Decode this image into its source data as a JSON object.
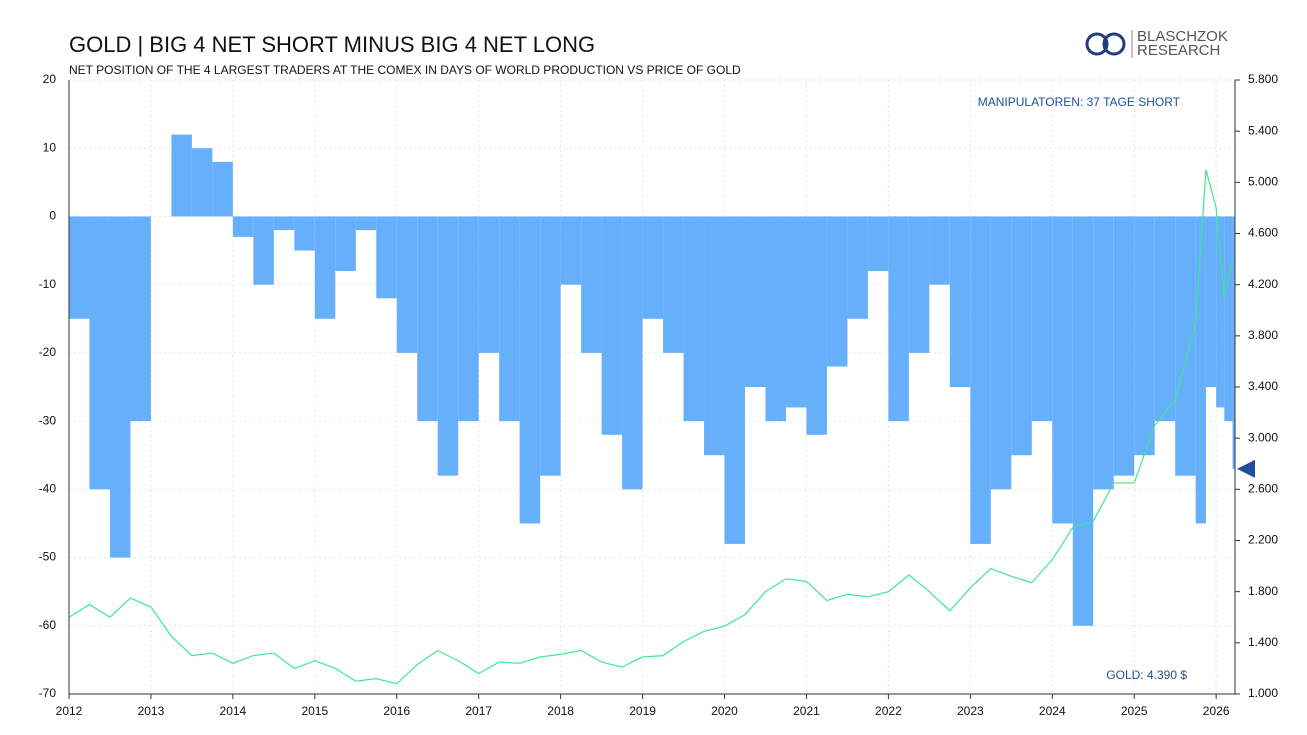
{
  "chart_data": {
    "type": "bar-line",
    "title": "GOLD | BIG 4 NET SHORT MINUS BIG 4 NET LONG",
    "subtitle": "NET POSITION OF THE 4 LARGEST TRADERS AT THE COMEX IN DAYS OF WORLD PRODUCTION VS PRICE OF GOLD",
    "logo": [
      "BLASCHZOK",
      "RESEARCH"
    ],
    "annotations": [
      "MANIPULATOREN: 37 TAGE SHORT",
      "GOLD: 4.390 $"
    ],
    "x": [
      2012,
      2012.25,
      2012.5,
      2012.75,
      2013,
      2013.25,
      2013.5,
      2013.75,
      2014,
      2014.25,
      2014.5,
      2014.75,
      2015,
      2015.25,
      2015.5,
      2015.75,
      2016,
      2016.25,
      2016.5,
      2016.75,
      2017,
      2017.25,
      2017.5,
      2017.75,
      2018,
      2018.25,
      2018.5,
      2018.75,
      2019,
      2019.25,
      2019.5,
      2019.75,
      2020,
      2020.25,
      2020.5,
      2020.75,
      2021,
      2021.25,
      2021.5,
      2021.75,
      2022,
      2022.25,
      2022.5,
      2022.75,
      2023,
      2023.25,
      2023.5,
      2023.75,
      2024,
      2024.25,
      2024.5,
      2024.75,
      2025,
      2025.25,
      2025.5,
      2025.75,
      2025.875,
      2026,
      2026.1,
      2026.2
    ],
    "series": [
      {
        "name": "Big 4 net position",
        "color": "#66b0fb",
        "values": [
          -15,
          -40,
          -50,
          -30,
          0,
          12,
          10,
          8,
          -3,
          -10,
          -2,
          -5,
          -15,
          -8,
          -2,
          -12,
          -20,
          -30,
          -38,
          -30,
          -20,
          -30,
          -45,
          -38,
          -10,
          -20,
          -32,
          -40,
          -15,
          -20,
          -30,
          -35,
          -48,
          -25,
          -30,
          -28,
          -32,
          -22,
          -15,
          -8,
          -30,
          -20,
          -10,
          -25,
          -48,
          -40,
          -35,
          -30,
          -45,
          -60,
          -40,
          -38,
          -35,
          -30,
          -38,
          -45,
          -25,
          -28,
          -30,
          -37
        ]
      },
      {
        "name": "Gold",
        "axis": "y2",
        "color": "#3ee88e",
        "values": [
          1600,
          1700,
          1600,
          1750,
          1680,
          1450,
          1300,
          1320,
          1240,
          1300,
          1320,
          1200,
          1260,
          1200,
          1100,
          1120,
          1080,
          1230,
          1340,
          1260,
          1160,
          1250,
          1240,
          1290,
          1310,
          1340,
          1250,
          1210,
          1290,
          1300,
          1410,
          1490,
          1530,
          1620,
          1800,
          1900,
          1880,
          1730,
          1780,
          1760,
          1800,
          1930,
          1800,
          1650,
          1830,
          1980,
          1920,
          1870,
          2050,
          2300,
          2350,
          2650,
          2650,
          3100,
          3300,
          3900,
          5100,
          4800,
          4100,
          4390
        ]
      }
    ],
    "xlim": [
      2012,
      2026.23
    ],
    "xticks": [
      2012,
      2013,
      2014,
      2015,
      2016,
      2017,
      2018,
      2019,
      2020,
      2021,
      2022,
      2023,
      2024,
      2025,
      2026
    ],
    "ylim": [
      -70,
      20
    ],
    "yticks": [
      -70,
      -60,
      -50,
      -40,
      -30,
      -20,
      -10,
      0,
      10,
      20
    ],
    "y2lim": [
      1000,
      5800
    ],
    "y2ticks": [
      {
        "value": 1000,
        "label": "1.000"
      },
      {
        "value": 1400,
        "label": "1.400"
      },
      {
        "value": 1800,
        "label": "1.800"
      },
      {
        "value": 2200,
        "label": "2.200"
      },
      {
        "value": 2600,
        "label": "2.600"
      },
      {
        "value": 3000,
        "label": "3.000"
      },
      {
        "value": 3400,
        "label": "3.400"
      },
      {
        "value": 3800,
        "label": "3.800"
      },
      {
        "value": 4200,
        "label": "4.200"
      },
      {
        "value": 4600,
        "label": "4.600"
      },
      {
        "value": 5000,
        "label": "5.000"
      },
      {
        "value": 5400,
        "label": "5.400"
      },
      {
        "value": 5800,
        "label": "5.800"
      }
    ],
    "grid": true
  }
}
